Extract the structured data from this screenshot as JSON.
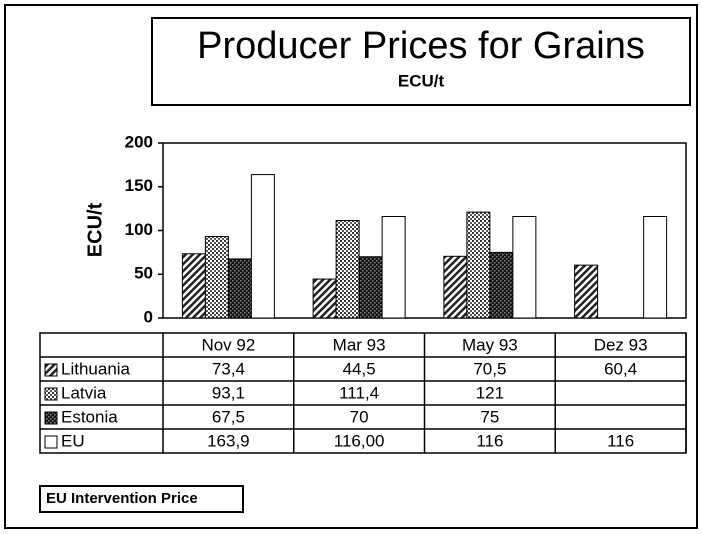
{
  "chart_data": {
    "type": "bar",
    "title": "Producer Prices for Grains",
    "subtitle": "ECU/t",
    "y_label": "ECU/t",
    "note": "EU Intervention Price",
    "categories": [
      "Nov 92",
      "Mar 93",
      "May 93",
      "Dez 93"
    ],
    "series": [
      {
        "name": "Lithuania",
        "pattern": "diagonal",
        "values": [
          73.4,
          44.5,
          70.5,
          60.4
        ],
        "value_labels": [
          "73,4",
          "44,5",
          "70,5",
          "60,4"
        ]
      },
      {
        "name": "Latvia",
        "pattern": "crosshatch",
        "values": [
          93.1,
          111.4,
          121,
          null
        ],
        "value_labels": [
          "93,1",
          "111,4",
          "121",
          null
        ]
      },
      {
        "name": "Estonia",
        "pattern": "checker",
        "values": [
          67.5,
          70,
          75,
          null
        ],
        "value_labels": [
          "67,5",
          "70",
          "75",
          null
        ]
      },
      {
        "name": "EU",
        "pattern": "white",
        "values": [
          163.9,
          116,
          116,
          116
        ],
        "value_labels": [
          "163,9",
          "116,00",
          "116",
          "116"
        ]
      }
    ],
    "ylim": [
      0,
      200
    ],
    "yticks": [
      0,
      50,
      100,
      150,
      200
    ],
    "grid": false
  }
}
